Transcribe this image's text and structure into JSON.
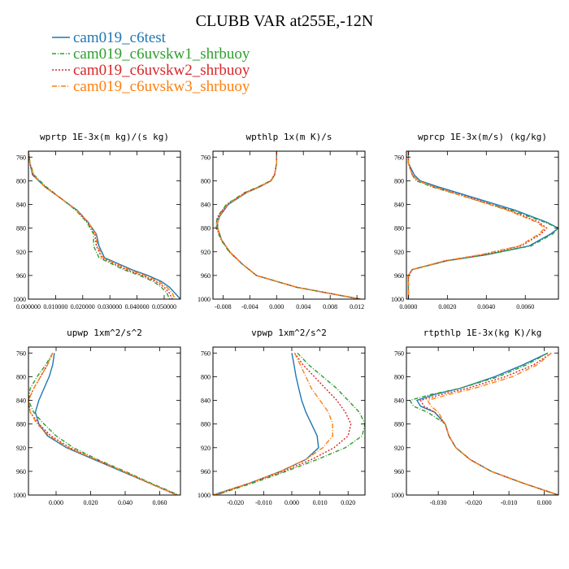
{
  "figure": {
    "title": "CLUBB VAR at255E,-12N",
    "legend": [
      {
        "name": "cam019_c6test",
        "color": "#1f77b4",
        "dash": ""
      },
      {
        "name": "cam019_c6uvskw1_shrbuoy",
        "color": "#2ca02c",
        "dash": "5,2,1,2"
      },
      {
        "name": "cam019_c6uvskw2_shrbuoy",
        "color": "#d62728",
        "dash": "2,2"
      },
      {
        "name": "cam019_c6uvskw3_shrbuoy",
        "color": "#ff7f0e",
        "dash": "6,2,1,2"
      }
    ]
  },
  "chart_data": [
    {
      "type": "line",
      "title": "wprtp  1E-3x(m kg)/(s kg)",
      "xlim": [
        0.0,
        0.056
      ],
      "ylim": [
        1000,
        750
      ],
      "xticks": [
        0.0,
        0.01,
        0.02,
        0.03,
        0.04,
        0.05
      ],
      "xtick_labels": [
        "0.000000",
        "0.010000",
        "0.020000",
        "0.030000",
        "0.040000",
        "0.050000"
      ],
      "yticks": [
        760,
        800,
        840,
        880,
        920,
        960,
        1000
      ],
      "y": [
        750,
        770,
        790,
        810,
        830,
        850,
        870,
        890,
        910,
        930,
        950,
        960,
        970,
        980,
        990,
        1000
      ],
      "series": [
        {
          "values": [
            0.0,
            0.0005,
            0.0015,
            0.006,
            0.012,
            0.018,
            0.022,
            0.025,
            0.026,
            0.028,
            0.038,
            0.044,
            0.049,
            0.052,
            0.054,
            0.056
          ]
        },
        {
          "values": [
            0.0,
            0.0006,
            0.002,
            0.0065,
            0.012,
            0.0175,
            0.0215,
            0.024,
            0.024,
            0.026,
            0.035,
            0.041,
            0.046,
            0.049,
            0.051,
            0.052
          ]
        },
        {
          "values": [
            0.0,
            0.0005,
            0.0018,
            0.0062,
            0.012,
            0.0178,
            0.0218,
            0.0245,
            0.025,
            0.027,
            0.036,
            0.042,
            0.047,
            0.05,
            0.052,
            0.053
          ]
        },
        {
          "values": [
            0.0,
            0.0005,
            0.0017,
            0.006,
            0.012,
            0.0178,
            0.022,
            0.0248,
            0.0255,
            0.0275,
            0.037,
            0.043,
            0.048,
            0.051,
            0.053,
            0.054
          ]
        }
      ]
    },
    {
      "type": "line",
      "title": "wpthlp  1x(m K)/s",
      "xlim": [
        -0.0095,
        0.0132
      ],
      "ylim": [
        1000,
        750
      ],
      "xticks": [
        -0.008,
        -0.004,
        0.0,
        0.004,
        0.008,
        0.012
      ],
      "xtick_labels": [
        "-0.008",
        "-0.004",
        "0.000",
        "0.004",
        "0.008",
        "0.012"
      ],
      "yticks": [
        760,
        800,
        840,
        880,
        920,
        960,
        1000
      ],
      "y": [
        750,
        770,
        790,
        800,
        810,
        820,
        840,
        860,
        870,
        880,
        900,
        920,
        940,
        960,
        980,
        1000
      ],
      "series": [
        {
          "values": [
            0.0,
            0.0,
            -0.0003,
            -0.0008,
            -0.0025,
            -0.0045,
            -0.0072,
            -0.0085,
            -0.0088,
            -0.0088,
            -0.0082,
            -0.007,
            -0.0052,
            -0.003,
            0.003,
            0.0125
          ]
        },
        {
          "values": [
            0.0,
            0.0,
            -0.0003,
            -0.0009,
            -0.0027,
            -0.0048,
            -0.0075,
            -0.0088,
            -0.009,
            -0.009,
            -0.0083,
            -0.0071,
            -0.0052,
            -0.003,
            0.003,
            0.0125
          ]
        },
        {
          "values": [
            0.0,
            0.0,
            -0.0003,
            -0.0009,
            -0.0026,
            -0.0047,
            -0.0074,
            -0.0087,
            -0.0089,
            -0.0089,
            -0.0082,
            -0.007,
            -0.0052,
            -0.003,
            0.003,
            0.0125
          ]
        },
        {
          "values": [
            0.0,
            0.0,
            -0.0003,
            -0.0008,
            -0.0026,
            -0.0046,
            -0.0073,
            -0.0086,
            -0.0088,
            -0.0088,
            -0.0082,
            -0.007,
            -0.0052,
            -0.003,
            0.003,
            0.0125
          ]
        }
      ]
    },
    {
      "type": "line",
      "title": "wprcp  1E-3x(m/s) (kg/kg)",
      "xlim": [
        -0.0001,
        0.0077
      ],
      "ylim": [
        1000,
        750
      ],
      "xticks": [
        0.0,
        0.002,
        0.004,
        0.006
      ],
      "xtick_labels": [
        "0.0000",
        "0.0020",
        "0.0040",
        "0.0060"
      ],
      "yticks": [
        760,
        800,
        840,
        880,
        920,
        960,
        1000
      ],
      "y": [
        750,
        770,
        790,
        800,
        810,
        830,
        850,
        870,
        880,
        890,
        910,
        925,
        935,
        950,
        960,
        1000
      ],
      "series": [
        {
          "values": [
            0.0,
            0.0,
            0.0003,
            0.0006,
            0.0015,
            0.0035,
            0.0055,
            0.0071,
            0.0077,
            0.0073,
            0.0062,
            0.004,
            0.002,
            0.0002,
            0.0,
            0.0
          ]
        },
        {
          "values": [
            0.0,
            0.0,
            0.0002,
            0.0004,
            0.0012,
            0.0032,
            0.0053,
            0.007,
            0.0077,
            0.0074,
            0.0063,
            0.004,
            0.002,
            0.0002,
            0.0,
            0.0
          ]
        },
        {
          "values": [
            0.0,
            0.0,
            0.0002,
            0.0005,
            0.0013,
            0.0033,
            0.0052,
            0.0067,
            0.0071,
            0.0068,
            0.0058,
            0.0038,
            0.0019,
            0.0002,
            0.0,
            0.0
          ]
        },
        {
          "values": [
            0.0,
            0.0,
            0.0002,
            0.0005,
            0.0013,
            0.0032,
            0.0051,
            0.0066,
            0.007,
            0.0067,
            0.0057,
            0.0037,
            0.0019,
            0.0002,
            0.0,
            0.0
          ]
        }
      ]
    },
    {
      "type": "line",
      "title": "upwp  1xm^2/s^2",
      "xlim": [
        -0.016,
        0.072
      ],
      "ylim": [
        1000,
        750
      ],
      "xticks": [
        0.0,
        0.02,
        0.04,
        0.06
      ],
      "xtick_labels": [
        "0.000",
        "0.020",
        "0.040",
        "0.060"
      ],
      "yticks": [
        760,
        800,
        840,
        880,
        920,
        960,
        1000
      ],
      "y": [
        760,
        780,
        800,
        820,
        840,
        860,
        880,
        900,
        920,
        940,
        960,
        980,
        1000
      ],
      "series": [
        {
          "values": [
            -0.001,
            -0.002,
            -0.004,
            -0.007,
            -0.01,
            -0.012,
            -0.01,
            -0.005,
            0.006,
            0.022,
            0.038,
            0.054,
            0.07
          ]
        },
        {
          "values": [
            -0.002,
            -0.006,
            -0.011,
            -0.015,
            -0.016,
            -0.013,
            -0.007,
            0.0,
            0.01,
            0.024,
            0.04,
            0.055,
            0.071
          ]
        },
        {
          "values": [
            -0.002,
            -0.005,
            -0.009,
            -0.013,
            -0.016,
            -0.015,
            -0.01,
            -0.003,
            0.008,
            0.023,
            0.039,
            0.054,
            0.07
          ]
        },
        {
          "values": [
            -0.002,
            -0.005,
            -0.009,
            -0.013,
            -0.016,
            -0.015,
            -0.011,
            -0.004,
            0.007,
            0.023,
            0.039,
            0.054,
            0.07
          ]
        }
      ]
    },
    {
      "type": "line",
      "title": "vpwp  1xm^2/s^2",
      "xlim": [
        -0.028,
        0.026
      ],
      "ylim": [
        1000,
        750
      ],
      "xticks": [
        -0.02,
        -0.01,
        0.0,
        0.01,
        0.02
      ],
      "xtick_labels": [
        "-0.020",
        "-0.010",
        "0.000",
        "0.010",
        "0.020"
      ],
      "yticks": [
        760,
        800,
        840,
        880,
        920,
        960,
        1000
      ],
      "y": [
        760,
        780,
        800,
        820,
        840,
        860,
        880,
        900,
        920,
        940,
        960,
        980,
        1000
      ],
      "series": [
        {
          "values": [
            0.0,
            0.0008,
            0.0015,
            0.0025,
            0.0035,
            0.005,
            0.007,
            0.009,
            0.0095,
            0.005,
            -0.004,
            -0.015,
            -0.028
          ]
        },
        {
          "values": [
            0.002,
            0.006,
            0.011,
            0.016,
            0.02,
            0.024,
            0.026,
            0.025,
            0.019,
            0.009,
            -0.002,
            -0.014,
            -0.027
          ]
        },
        {
          "values": [
            0.001,
            0.004,
            0.008,
            0.012,
            0.016,
            0.019,
            0.021,
            0.02,
            0.015,
            0.007,
            -0.003,
            -0.015,
            -0.027
          ]
        },
        {
          "values": [
            0.001,
            0.003,
            0.005,
            0.007,
            0.01,
            0.013,
            0.0145,
            0.0145,
            0.011,
            0.005,
            -0.004,
            -0.015,
            -0.028
          ]
        }
      ]
    },
    {
      "type": "line",
      "title": "rtpthlp  1E-3x(kg K)/kg",
      "xlim": [
        -0.039,
        0.004
      ],
      "ylim": [
        1000,
        750
      ],
      "xticks": [
        -0.03,
        -0.02,
        -0.01,
        0.0
      ],
      "xtick_labels": [
        "-0.030",
        "-0.020",
        "-0.010",
        "0.000"
      ],
      "yticks": [
        760,
        800,
        840,
        880,
        920,
        960,
        1000
      ],
      "y": [
        760,
        780,
        800,
        820,
        830,
        840,
        850,
        860,
        880,
        900,
        920,
        940,
        960,
        980,
        1000
      ],
      "series": [
        {
          "values": [
            0.001,
            -0.006,
            -0.014,
            -0.024,
            -0.031,
            -0.036,
            -0.035,
            -0.031,
            -0.028,
            -0.027,
            -0.025,
            -0.021,
            -0.015,
            -0.006,
            0.004
          ]
        },
        {
          "values": [
            0.001,
            -0.005,
            -0.013,
            -0.024,
            -0.032,
            -0.038,
            -0.037,
            -0.033,
            -0.028,
            -0.027,
            -0.025,
            -0.021,
            -0.015,
            -0.006,
            0.004
          ]
        },
        {
          "values": [
            0.002,
            -0.003,
            -0.011,
            -0.022,
            -0.029,
            -0.035,
            -0.034,
            -0.031,
            -0.028,
            -0.027,
            -0.025,
            -0.021,
            -0.015,
            -0.006,
            0.004
          ]
        },
        {
          "values": [
            0.002,
            -0.002,
            -0.009,
            -0.02,
            -0.027,
            -0.033,
            -0.032,
            -0.03,
            -0.028,
            -0.027,
            -0.025,
            -0.021,
            -0.015,
            -0.006,
            0.004
          ]
        }
      ]
    }
  ]
}
